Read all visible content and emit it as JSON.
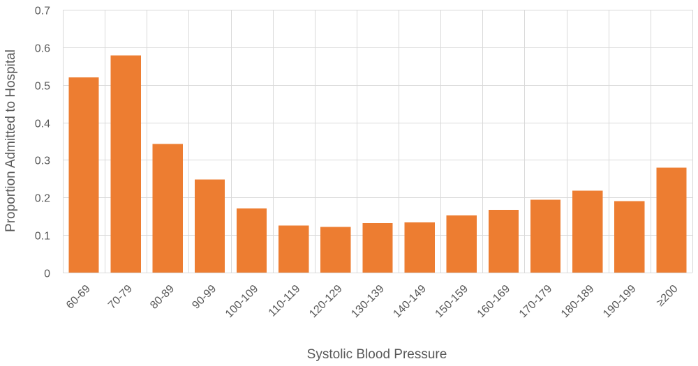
{
  "chart_data": {
    "type": "bar",
    "categories": [
      "60-69",
      "70-79",
      "80-89",
      "90-99",
      "100-109",
      "110-119",
      "120-129",
      "130-139",
      "140-149",
      "150-159",
      "160-169",
      "170-179",
      "180-189",
      "190-199",
      "≥200"
    ],
    "values": [
      0.52,
      0.578,
      0.343,
      0.248,
      0.171,
      0.125,
      0.122,
      0.132,
      0.134,
      0.152,
      0.167,
      0.194,
      0.218,
      0.19,
      0.279
    ],
    "title": "",
    "xlabel": "Systolic Blood Pressure",
    "ylabel": "Proportion Admitted to Hospital",
    "ylim": [
      0,
      0.7
    ],
    "yticks": [
      "0",
      "0.1",
      "0.2",
      "0.3",
      "0.4",
      "0.5",
      "0.6",
      "0.7"
    ],
    "grid": true,
    "legend": "none",
    "bar_color": "#ED7D31",
    "gridline_color": "#D9D9D9",
    "text_color": "#595959"
  }
}
